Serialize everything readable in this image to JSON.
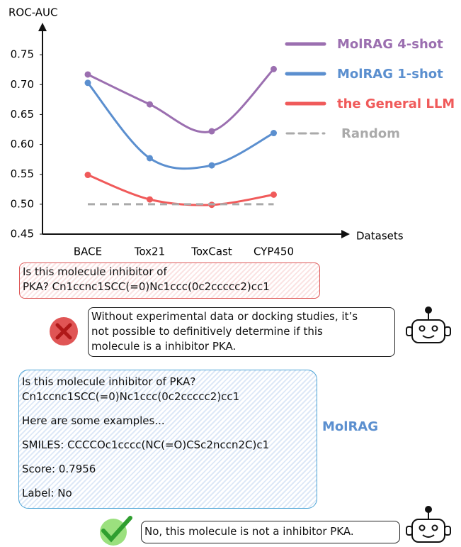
{
  "chart_data": {
    "type": "line",
    "y_label": "ROC-AUC",
    "x_label": "Datasets",
    "categories": [
      "BACE",
      "Tox21",
      "ToxCast",
      "CYP450"
    ],
    "series": [
      {
        "name": "MolRAG 4-shot",
        "color": "#9b6fb0",
        "values": [
          0.717,
          0.667,
          0.622,
          0.726
        ]
      },
      {
        "name": "MolRAG 1-shot",
        "color": "#5b8fcf",
        "values": [
          0.703,
          0.577,
          0.565,
          0.619
        ]
      },
      {
        "name": "the General LLM",
        "color": "#f05a5a",
        "values": [
          0.549,
          0.508,
          0.499,
          0.516
        ]
      },
      {
        "name": "Random",
        "color": "#aaaaaa",
        "dashed": true,
        "values": [
          0.5,
          0.5,
          0.5,
          0.5
        ]
      }
    ],
    "ylim": [
      0.45,
      0.8
    ],
    "yticks": [
      0.45,
      {
        "value": 0.5,
        "label": "0.50"
      },
      0.55,
      {
        "value": 0.6,
        "label": "0.60"
      },
      0.65,
      {
        "value": 0.7,
        "label": "0.70"
      },
      0.75
    ],
    "grid": false
  },
  "general_query": {
    "lines": [
      "Is this molecule inhibitor of",
      "PKA? Cn1ccnc1SCC(=0)Nc1ccc(0c2ccccc2)cc1"
    ]
  },
  "general_answer": {
    "lines": [
      "Without experimental data or docking studies, it’s",
      "not possible to definitively determine if this",
      "molecule is a inhibitor PKA."
    ]
  },
  "molrag_query": {
    "lines": [
      "Is this molecule inhibitor of PKA?",
      "Cn1ccnc1SCC(=0)Nc1ccc(0c2ccccc2)cc1",
      "Here are some examples...",
      "SMILES: CCCCOc1cccc(NC(=O)CSc2nccn2C)c1",
      "Score: 0.7956",
      "Label: No"
    ],
    "tag": "MolRAG"
  },
  "molrag_answer": {
    "text": "No, this molecule is not a inhibitor PKA."
  }
}
